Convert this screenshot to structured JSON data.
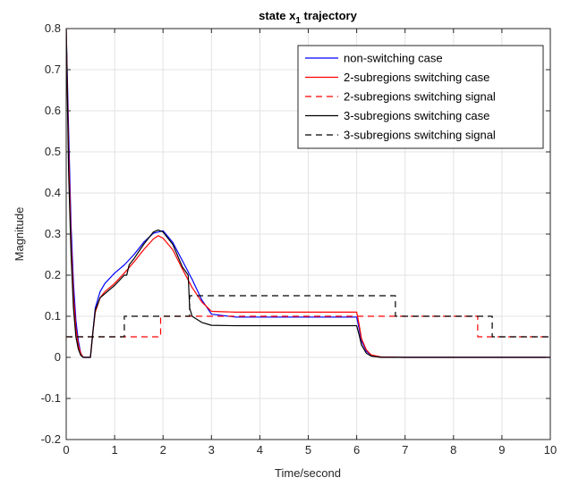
{
  "chart_data": {
    "type": "line",
    "title": "state x",
    "title_subscript": "1",
    "title_suffix": " trajectory",
    "xlabel": "Time/second",
    "ylabel": "Magnitude",
    "xlim": [
      0,
      10
    ],
    "ylim": [
      -0.2,
      0.8
    ],
    "xticks": [
      "0",
      "1",
      "2",
      "3",
      "4",
      "5",
      "6",
      "7",
      "8",
      "9",
      "10"
    ],
    "yticks": [
      "-0.2",
      "-0.1",
      "0",
      "0.1",
      "0.2",
      "0.3",
      "0.4",
      "0.5",
      "0.6",
      "0.7",
      "0.8"
    ],
    "grid": true,
    "legend_position": "top-right",
    "series": [
      {
        "name": "non-switching case",
        "color": "#0000ff",
        "dash": "solid",
        "x": [
          0.0,
          0.05,
          0.1,
          0.15,
          0.2,
          0.25,
          0.3,
          0.35,
          0.4,
          0.5,
          0.55,
          0.6,
          0.7,
          0.8,
          1.0,
          1.2,
          1.4,
          1.6,
          1.8,
          2.0,
          2.2,
          2.4,
          2.6,
          2.8,
          3.0,
          3.5,
          4.0,
          5.0,
          6.0,
          6.05,
          6.1,
          6.2,
          6.3,
          6.5,
          7.0,
          8.0,
          10.0
        ],
        "y": [
          0.8,
          0.55,
          0.32,
          0.18,
          0.09,
          0.04,
          0.01,
          0.0,
          0.0,
          0.0,
          0.06,
          0.12,
          0.16,
          0.18,
          0.205,
          0.225,
          0.25,
          0.28,
          0.302,
          0.308,
          0.28,
          0.235,
          0.19,
          0.14,
          0.105,
          0.098,
          0.098,
          0.098,
          0.098,
          0.07,
          0.04,
          0.015,
          0.005,
          0.001,
          0.0,
          0.0,
          0.0
        ]
      },
      {
        "name": "2-subregions switching case",
        "color": "#ff0000",
        "dash": "solid",
        "x": [
          0.0,
          0.05,
          0.1,
          0.15,
          0.2,
          0.25,
          0.3,
          0.35,
          0.4,
          0.5,
          0.55,
          0.6,
          0.7,
          0.8,
          1.0,
          1.2,
          1.4,
          1.6,
          1.8,
          1.9,
          2.0,
          2.2,
          2.4,
          2.6,
          2.8,
          3.0,
          3.5,
          4.0,
          5.0,
          6.0,
          6.05,
          6.1,
          6.2,
          6.3,
          6.5,
          7.0,
          8.0,
          10.0
        ],
        "y": [
          0.8,
          0.5,
          0.28,
          0.15,
          0.07,
          0.03,
          0.01,
          0.0,
          0.0,
          0.0,
          0.06,
          0.11,
          0.145,
          0.16,
          0.18,
          0.205,
          0.232,
          0.262,
          0.288,
          0.296,
          0.29,
          0.262,
          0.215,
          0.17,
          0.135,
          0.112,
          0.11,
          0.11,
          0.11,
          0.11,
          0.08,
          0.045,
          0.018,
          0.006,
          0.001,
          0.0,
          0.0,
          0.0
        ]
      },
      {
        "name": "2-subregions switching signal",
        "color": "#ff0000",
        "dash": "dashed",
        "x": [
          0.0,
          1.2,
          1.2,
          1.95,
          1.95,
          8.5,
          8.5,
          10.0
        ],
        "y": [
          0.05,
          0.05,
          0.05,
          0.05,
          0.1,
          0.1,
          0.05,
          0.05
        ]
      },
      {
        "name": "3-subregions switching case",
        "color": "#000000",
        "dash": "solid",
        "x": [
          0.0,
          0.05,
          0.1,
          0.15,
          0.2,
          0.25,
          0.3,
          0.35,
          0.4,
          0.5,
          0.55,
          0.6,
          0.7,
          0.8,
          1.0,
          1.2,
          1.25,
          1.3,
          1.4,
          1.6,
          1.8,
          1.9,
          2.0,
          2.2,
          2.4,
          2.52,
          2.55,
          2.6,
          2.8,
          3.0,
          3.5,
          4.0,
          5.0,
          6.0,
          6.05,
          6.1,
          6.2,
          6.3,
          6.5,
          7.0,
          8.0,
          10.0
        ],
        "y": [
          0.8,
          0.45,
          0.25,
          0.12,
          0.05,
          0.02,
          0.005,
          0.0,
          0.0,
          0.0,
          0.06,
          0.115,
          0.145,
          0.155,
          0.175,
          0.2,
          0.2,
          0.225,
          0.24,
          0.275,
          0.305,
          0.31,
          0.305,
          0.275,
          0.22,
          0.2,
          0.12,
          0.1,
          0.085,
          0.078,
          0.077,
          0.077,
          0.077,
          0.077,
          0.055,
          0.03,
          0.01,
          0.003,
          0.0,
          0.0,
          0.0,
          0.0
        ]
      },
      {
        "name": "3-subregions switching signal",
        "color": "#000000",
        "dash": "dashed",
        "x": [
          0.0,
          1.2,
          1.2,
          2.55,
          2.55,
          6.8,
          6.8,
          8.8,
          8.8,
          10.0
        ],
        "y": [
          0.05,
          0.05,
          0.1,
          0.1,
          0.15,
          0.15,
          0.1,
          0.1,
          0.05,
          0.05
        ]
      }
    ]
  }
}
